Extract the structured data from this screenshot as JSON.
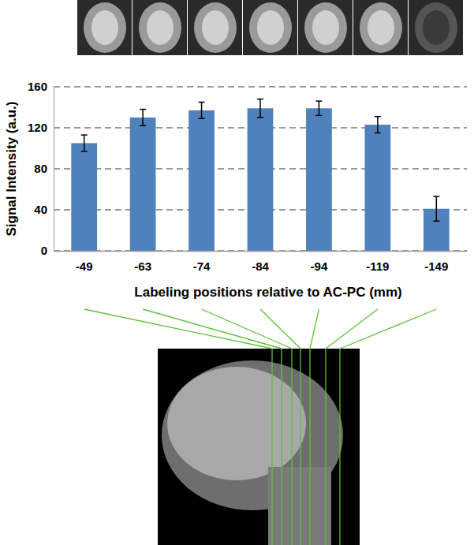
{
  "chart_data": {
    "type": "bar",
    "categories": [
      "-49",
      "-63",
      "-74",
      "-84",
      "-94",
      "-119",
      "-149"
    ],
    "values": [
      105,
      130,
      137,
      139,
      139,
      123,
      41
    ],
    "errors": [
      8,
      8,
      8,
      9,
      7,
      8,
      12
    ],
    "color": "#4f81bd",
    "x_label": "Labeling positions relative to AC-PC  (mm)",
    "y_label": "Signal Intensity (a.u.)",
    "ylim": [
      0,
      160
    ],
    "yticks": [
      0,
      40,
      80,
      120,
      160
    ],
    "grid": true
  }
}
